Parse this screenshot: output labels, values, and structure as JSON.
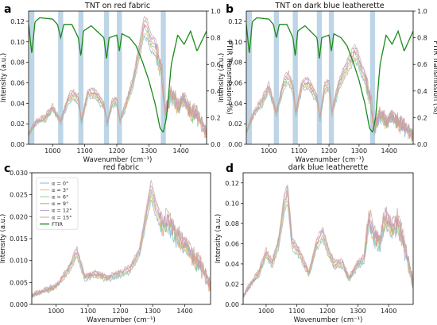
{
  "colors": {
    "ftir": "#1a8a1a",
    "band": "#a7c7dd",
    "angles": [
      "#7fbcd9",
      "#f3b37a",
      "#8ccf8c",
      "#e58a8a",
      "#b9a0d6",
      "#c9a896"
    ]
  },
  "chart_data": [
    {
      "panel_label": "a",
      "title": "TNT on red fabric",
      "type": "line",
      "xlabel": "Wavenumber (cm⁻¹)",
      "ylabel": "Intensity (a.u.)",
      "y2label": "FTIR Transmission (%)",
      "xlim": [
        925,
        1480
      ],
      "ylim": [
        0,
        0.13
      ],
      "y2lim": [
        0,
        1.0
      ],
      "xticks": [
        "1000",
        "1100",
        "1200",
        "1300",
        "1400"
      ],
      "yticks": [
        "0.00",
        "0.02",
        "0.04",
        "0.06",
        "0.08",
        "0.10",
        "0.12"
      ],
      "y2ticks": [
        "0.0",
        "0.2",
        "0.4",
        "0.6",
        "0.8",
        "1.0"
      ],
      "bands": [
        935,
        1025,
        1088,
        1168,
        1208,
        1345
      ],
      "series": [
        {
          "x": [
            925,
            950,
            975,
            1000,
            1025,
            1050,
            1065,
            1080,
            1090,
            1110,
            1130,
            1160,
            1170,
            1185,
            1200,
            1210,
            1230,
            1250,
            1270,
            1285,
            1295,
            1305,
            1320,
            1340,
            1350,
            1370,
            1390,
            1410,
            1430,
            1450,
            1480
          ],
          "values": [
            0.01,
            0.022,
            0.025,
            0.035,
            0.022,
            0.045,
            0.048,
            0.044,
            0.022,
            0.05,
            0.05,
            0.038,
            0.02,
            0.04,
            0.042,
            0.022,
            0.04,
            0.06,
            0.09,
            0.115,
            0.112,
            0.1,
            0.095,
            0.07,
            0.03,
            0.05,
            0.035,
            0.045,
            0.03,
            0.03,
            0.01
          ]
        }
      ],
      "ftir": {
        "x": [
          925,
          935,
          945,
          960,
          1000,
          1015,
          1025,
          1035,
          1060,
          1080,
          1088,
          1096,
          1120,
          1160,
          1168,
          1176,
          1200,
          1208,
          1216,
          1240,
          1260,
          1280,
          1300,
          1320,
          1335,
          1345,
          1355,
          1370,
          1390,
          1410,
          1430,
          1450,
          1480
        ],
        "values": [
          0.9,
          0.68,
          0.92,
          0.95,
          0.94,
          0.9,
          0.8,
          0.9,
          0.9,
          0.8,
          0.66,
          0.85,
          0.89,
          0.8,
          0.64,
          0.8,
          0.82,
          0.7,
          0.83,
          0.8,
          0.74,
          0.62,
          0.48,
          0.3,
          0.12,
          0.09,
          0.2,
          0.6,
          0.82,
          0.75,
          0.85,
          0.7,
          0.85
        ]
      }
    },
    {
      "panel_label": "b",
      "title": "TNT on dark blue leatherette",
      "type": "line",
      "xlabel": "Wavenumber (cm⁻¹)",
      "ylabel": "Intensity (a.u.)",
      "y2label": "FTIR Transmission (%)",
      "xlim": [
        925,
        1480
      ],
      "ylim": [
        0,
        0.13
      ],
      "y2lim": [
        0,
        1.0
      ],
      "xticks": [
        "1000",
        "1100",
        "1200",
        "1300",
        "1400"
      ],
      "yticks": [
        "0.00",
        "0.02",
        "0.04",
        "0.06",
        "0.08",
        "0.10",
        "0.12"
      ],
      "y2ticks": [
        "0.0",
        "0.2",
        "0.4",
        "0.6",
        "0.8",
        "1.0"
      ],
      "bands": [
        935,
        1025,
        1088,
        1168,
        1208,
        1345
      ],
      "series": [
        {
          "x": [
            925,
            950,
            975,
            1000,
            1025,
            1050,
            1065,
            1080,
            1090,
            1110,
            1130,
            1160,
            1170,
            1185,
            1200,
            1210,
            1230,
            1250,
            1270,
            1285,
            1295,
            1305,
            1320,
            1340,
            1350,
            1370,
            1390,
            1410,
            1430,
            1450,
            1480
          ],
          "values": [
            0.012,
            0.03,
            0.04,
            0.055,
            0.03,
            0.06,
            0.065,
            0.055,
            0.03,
            0.058,
            0.06,
            0.045,
            0.025,
            0.055,
            0.058,
            0.03,
            0.055,
            0.07,
            0.08,
            0.09,
            0.085,
            0.075,
            0.065,
            0.04,
            0.015,
            0.03,
            0.02,
            0.028,
            0.02,
            0.018,
            0.008
          ]
        }
      ],
      "ftir": {
        "x": [
          925,
          935,
          945,
          960,
          1000,
          1015,
          1025,
          1035,
          1060,
          1080,
          1088,
          1096,
          1120,
          1160,
          1168,
          1176,
          1200,
          1208,
          1216,
          1240,
          1260,
          1280,
          1300,
          1320,
          1335,
          1345,
          1355,
          1370,
          1390,
          1410,
          1430,
          1450,
          1480
        ],
        "values": [
          0.9,
          0.68,
          0.92,
          0.95,
          0.94,
          0.9,
          0.8,
          0.9,
          0.9,
          0.8,
          0.66,
          0.85,
          0.89,
          0.8,
          0.64,
          0.8,
          0.82,
          0.7,
          0.83,
          0.8,
          0.74,
          0.62,
          0.48,
          0.3,
          0.12,
          0.09,
          0.2,
          0.6,
          0.82,
          0.75,
          0.85,
          0.7,
          0.85
        ]
      }
    },
    {
      "panel_label": "c",
      "title": "red fabric",
      "type": "line",
      "xlabel": "Wavenumber (cm⁻¹)",
      "ylabel": "Intensity (a.u.)",
      "xlim": [
        925,
        1480
      ],
      "ylim": [
        0,
        0.03
      ],
      "xticks": [
        "1000",
        "1100",
        "1200",
        "1300",
        "1400"
      ],
      "yticks": [
        "0.000",
        "0.005",
        "0.010",
        "0.015",
        "0.020",
        "0.025",
        "0.030"
      ],
      "legend": [
        "α = 0°",
        "α = 3°",
        "α = 6°",
        "α = 9°",
        "α = 12°",
        "α = 15°",
        "FTIR"
      ],
      "legend_loc": "upper-left",
      "series": [
        {
          "x": [
            925,
            960,
            1000,
            1040,
            1065,
            1090,
            1120,
            1160,
            1200,
            1230,
            1260,
            1280,
            1295,
            1310,
            1330,
            1350,
            1370,
            1390,
            1410,
            1430,
            1450,
            1480
          ],
          "values": [
            0.002,
            0.003,
            0.004,
            0.008,
            0.012,
            0.006,
            0.007,
            0.006,
            0.007,
            0.008,
            0.012,
            0.02,
            0.026,
            0.022,
            0.018,
            0.019,
            0.016,
            0.014,
            0.013,
            0.01,
            0.009,
            0.004
          ]
        }
      ]
    },
    {
      "panel_label": "d",
      "title": "dark blue leatherette",
      "type": "line",
      "xlabel": "Wavenumber (cm⁻¹)",
      "ylabel": "Intensity (a.u.)",
      "xlim": [
        925,
        1480
      ],
      "ylim": [
        0,
        0.13
      ],
      "xticks": [
        "1000",
        "1100",
        "1200",
        "1300",
        "1400"
      ],
      "yticks": [
        "0.00",
        "0.02",
        "0.04",
        "0.06",
        "0.08",
        "0.10",
        "0.12"
      ],
      "series": [
        {
          "x": [
            925,
            950,
            975,
            1000,
            1020,
            1040,
            1060,
            1070,
            1085,
            1110,
            1140,
            1165,
            1185,
            1200,
            1220,
            1250,
            1270,
            1300,
            1320,
            1335,
            1350,
            1370,
            1390,
            1410,
            1430,
            1450,
            1480
          ],
          "values": [
            0.008,
            0.02,
            0.03,
            0.05,
            0.04,
            0.06,
            0.1,
            0.11,
            0.06,
            0.05,
            0.03,
            0.06,
            0.07,
            0.055,
            0.04,
            0.04,
            0.025,
            0.04,
            0.045,
            0.085,
            0.07,
            0.06,
            0.085,
            0.075,
            0.08,
            0.06,
            0.02
          ]
        }
      ]
    }
  ]
}
